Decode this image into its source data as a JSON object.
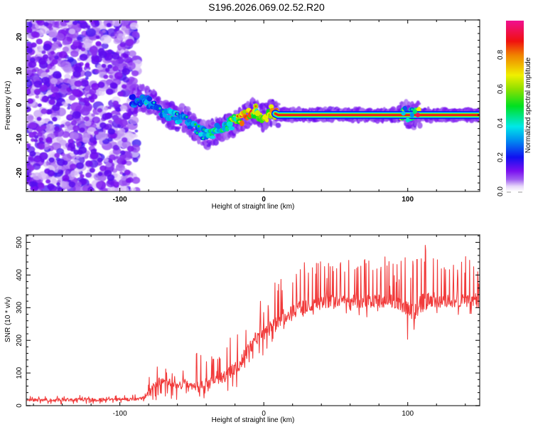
{
  "title": "S196.2026.069.02.52.R20",
  "chart_data": [
    {
      "type": "heatmap",
      "title": "S196.2026.069.02.52.R20",
      "xlabel": "Height of straight line (km)",
      "ylabel": "Frequency (Hz)",
      "xlim": [
        -165,
        150
      ],
      "ylim": [
        -25.5,
        25
      ],
      "xticks": [
        -100,
        0,
        100
      ],
      "yticks": [
        -20,
        -10,
        0,
        10,
        20
      ],
      "grid": false,
      "colorbar": {
        "label": "Normalized spectral amplitude",
        "range": [
          0,
          1
        ],
        "ticks": [
          "0.0",
          "0.2",
          "0.4",
          "0.6",
          "0.8"
        ],
        "colormap": [
          "#ffffff",
          "#e0c8f8",
          "#8a2be2",
          "#1010f0",
          "#00e5f0",
          "#00e000",
          "#f0f000",
          "#ff8000",
          "#f01010",
          "#f0108a"
        ]
      },
      "ridge": {
        "description": "Frequency ridge of signal vs height",
        "x": [
          -92,
          -85,
          -80,
          -75,
          -70,
          -65,
          -60,
          -55,
          -50,
          -45,
          -40,
          -35,
          -30,
          -25,
          -20,
          -15,
          -10,
          -5,
          0,
          5,
          10,
          15,
          20,
          30,
          40,
          50,
          60,
          70,
          80,
          90,
          100,
          105,
          110,
          120,
          130,
          140,
          150
        ],
        "y": [
          1,
          2,
          1,
          0,
          -2,
          -3,
          -4,
          -4,
          -6,
          -8,
          -9,
          -8,
          -7,
          -6,
          -5,
          -4,
          -2,
          -2,
          -4,
          -2,
          -3,
          -3,
          -3,
          -3,
          -3,
          -3,
          -3,
          -3,
          -3,
          -3,
          -3,
          -3,
          -3,
          -3,
          -3,
          -3,
          -3
        ],
        "amplitude": [
          0.3,
          0.3,
          0.35,
          0.3,
          0.3,
          0.35,
          0.35,
          0.3,
          0.3,
          0.35,
          0.4,
          0.45,
          0.4,
          0.5,
          0.6,
          0.75,
          0.85,
          0.6,
          0.7,
          0.8,
          0.85,
          0.9,
          0.75,
          0.6,
          0.65,
          0.75,
          0.85,
          0.9,
          0.92,
          0.9,
          0.35,
          0.45,
          0.95,
          0.95,
          0.95,
          0.95,
          0.95
        ]
      },
      "noise_region": {
        "x": [
          -165,
          -92
        ],
        "amplitude": [
          0.05,
          0.25
        ]
      }
    },
    {
      "type": "line",
      "xlabel": "Height of straight line (km)",
      "ylabel": "SNR (10 * v/v)",
      "xlim": [
        -165,
        150
      ],
      "ylim": [
        0,
        523
      ],
      "xticks": [
        -100,
        0,
        100
      ],
      "yticks": [
        0,
        100,
        200,
        300,
        400,
        500
      ],
      "grid": false,
      "color": "#f03030",
      "series": [
        {
          "name": "SNR",
          "x": [
            -165,
            -150,
            -130,
            -110,
            -90,
            -82,
            -78,
            -75,
            -70,
            -65,
            -60,
            -55,
            -50,
            -45,
            -40,
            -35,
            -30,
            -25,
            -20,
            -15,
            -10,
            -5,
            0,
            10,
            20,
            30,
            40,
            50,
            60,
            70,
            80,
            90,
            95,
            100,
            105,
            108,
            112,
            120,
            130,
            140,
            150
          ],
          "baseline": [
            18,
            18,
            18,
            18,
            20,
            25,
            50,
            70,
            75,
            70,
            60,
            65,
            60,
            55,
            60,
            80,
            85,
            95,
            115,
            140,
            180,
            205,
            220,
            260,
            290,
            305,
            315,
            320,
            320,
            320,
            320,
            320,
            310,
            300,
            280,
            310,
            320,
            320,
            320,
            320,
            320
          ],
          "spike_max": [
            30,
            30,
            35,
            30,
            35,
            80,
            130,
            170,
            150,
            145,
            120,
            180,
            135,
            200,
            220,
            170,
            200,
            230,
            260,
            300,
            340,
            370,
            370,
            440,
            440,
            450,
            450,
            450,
            455,
            470,
            460,
            450,
            445,
            460,
            470,
            523,
            500,
            450,
            450,
            460,
            450
          ],
          "spike_min": [
            5,
            5,
            5,
            5,
            5,
            10,
            15,
            15,
            20,
            20,
            10,
            10,
            10,
            15,
            20,
            20,
            30,
            40,
            50,
            80,
            90,
            100,
            140,
            220,
            250,
            270,
            270,
            270,
            270,
            270,
            270,
            270,
            250,
            200,
            200,
            230,
            280,
            280,
            280,
            240,
            280
          ]
        }
      ]
    }
  ]
}
